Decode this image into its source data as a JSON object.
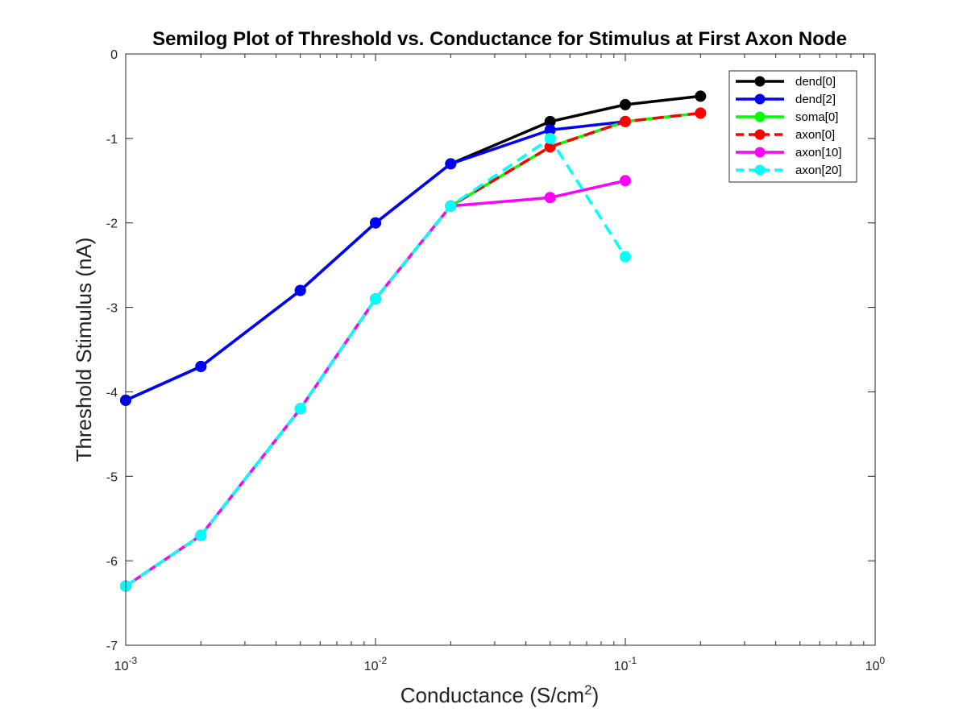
{
  "chart_data": {
    "type": "line",
    "title": "Semilog Plot of Threshold vs. Conductance for Stimulus at First Axon Node",
    "xlabel": "Conductance (S/cm",
    "xlabel_sup": "2",
    "xlabel_end": ")",
    "ylabel": "Threshold Stimulus (nA)",
    "xscale": "log",
    "xlim": [
      0.001,
      1
    ],
    "ylim": [
      -7,
      0
    ],
    "x_ticks": [
      {
        "value": 0.001,
        "base": "10",
        "exp": "-3"
      },
      {
        "value": 0.01,
        "base": "10",
        "exp": "-2"
      },
      {
        "value": 0.1,
        "base": "10",
        "exp": "-1"
      },
      {
        "value": 1,
        "base": "10",
        "exp": "0"
      }
    ],
    "y_ticks": [
      {
        "value": 0,
        "label": "0"
      },
      {
        "value": -1,
        "label": "-1"
      },
      {
        "value": -2,
        "label": "-2"
      },
      {
        "value": -3,
        "label": "-3"
      },
      {
        "value": -4,
        "label": "-4"
      },
      {
        "value": -5,
        "label": "-5"
      },
      {
        "value": -6,
        "label": "-6"
      },
      {
        "value": -7,
        "label": "-7"
      }
    ],
    "grid": false,
    "legend_position": "top-right",
    "series": [
      {
        "name": "dend[0]",
        "color": "#000000",
        "dashed": false,
        "x": [
          0.001,
          0.002,
          0.005,
          0.01,
          0.02,
          0.05,
          0.1,
          0.2
        ],
        "y": [
          -4.1,
          -3.7,
          -2.8,
          -2.0,
          -1.3,
          -0.8,
          -0.6,
          -0.5
        ]
      },
      {
        "name": "dend[2]",
        "color": "#0000ff",
        "dashed": false,
        "x": [
          0.001,
          0.002,
          0.005,
          0.01,
          0.02,
          0.05,
          0.1
        ],
        "y": [
          -4.1,
          -3.7,
          -2.8,
          -2.0,
          -1.3,
          -0.9,
          -0.8
        ]
      },
      {
        "name": "soma[0]",
        "color": "#00ff00",
        "dashed": false,
        "x": [
          0.001,
          0.002,
          0.005,
          0.01,
          0.02,
          0.05,
          0.1,
          0.2
        ],
        "y": [
          -6.3,
          -5.7,
          -4.2,
          -2.9,
          -1.8,
          -1.1,
          -0.8,
          -0.7
        ]
      },
      {
        "name": "axon[0]",
        "color": "#ff0000",
        "dashed": true,
        "x": [
          0.001,
          0.002,
          0.005,
          0.01,
          0.02,
          0.05,
          0.1,
          0.2
        ],
        "y": [
          -6.3,
          -5.7,
          -4.2,
          -2.9,
          -1.8,
          -1.1,
          -0.8,
          -0.7
        ]
      },
      {
        "name": "axon[10]",
        "color": "#ff00ff",
        "dashed": false,
        "x": [
          0.001,
          0.002,
          0.005,
          0.01,
          0.02,
          0.05,
          0.1
        ],
        "y": [
          -6.3,
          -5.7,
          -4.2,
          -2.9,
          -1.8,
          -1.7,
          -1.5
        ]
      },
      {
        "name": "axon[20]",
        "color": "#00ffff",
        "dashed": true,
        "x": [
          0.001,
          0.002,
          0.005,
          0.01,
          0.02,
          0.05,
          0.1
        ],
        "y": [
          -6.3,
          -5.7,
          -4.2,
          -2.9,
          -1.8,
          -1.0,
          -2.4
        ]
      }
    ]
  }
}
